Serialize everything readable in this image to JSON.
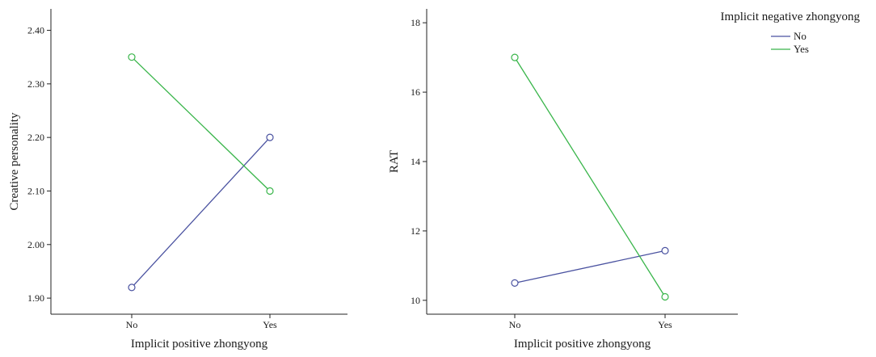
{
  "chart_data": [
    {
      "type": "line",
      "title": "",
      "xlabel": "Implicit positive zhongyong",
      "ylabel": "Creative personality",
      "categories": [
        "No",
        "Yes"
      ],
      "ylim": [
        1.87,
        2.44
      ],
      "yticks": [
        "1.90",
        "2.00",
        "2.10",
        "2.20",
        "2.30",
        "2.40"
      ],
      "series": [
        {
          "name": "No",
          "color": "#4a52a0",
          "values": [
            1.92,
            2.2
          ]
        },
        {
          "name": "Yes",
          "color": "#39b54a",
          "values": [
            2.35,
            2.1
          ]
        }
      ],
      "grid": false,
      "marker": "open-circle"
    },
    {
      "type": "line",
      "title": "",
      "xlabel": "Implicit positive zhongyong",
      "ylabel": "RAT",
      "categories": [
        "No",
        "Yes"
      ],
      "ylim": [
        9.6,
        18.4
      ],
      "yticks": [
        "10",
        "12",
        "14",
        "16",
        "18"
      ],
      "series": [
        {
          "name": "No",
          "color": "#4a52a0",
          "values": [
            10.5,
            11.43
          ]
        },
        {
          "name": "Yes",
          "color": "#39b54a",
          "values": [
            17.0,
            10.1
          ]
        }
      ],
      "grid": false,
      "marker": "open-circle"
    }
  ],
  "legend": {
    "title": "Implicit negative zhongyong",
    "placement": "top-right",
    "items": [
      {
        "label": "No",
        "color": "#4a52a0"
      },
      {
        "label": "Yes",
        "color": "#39b54a"
      }
    ]
  }
}
